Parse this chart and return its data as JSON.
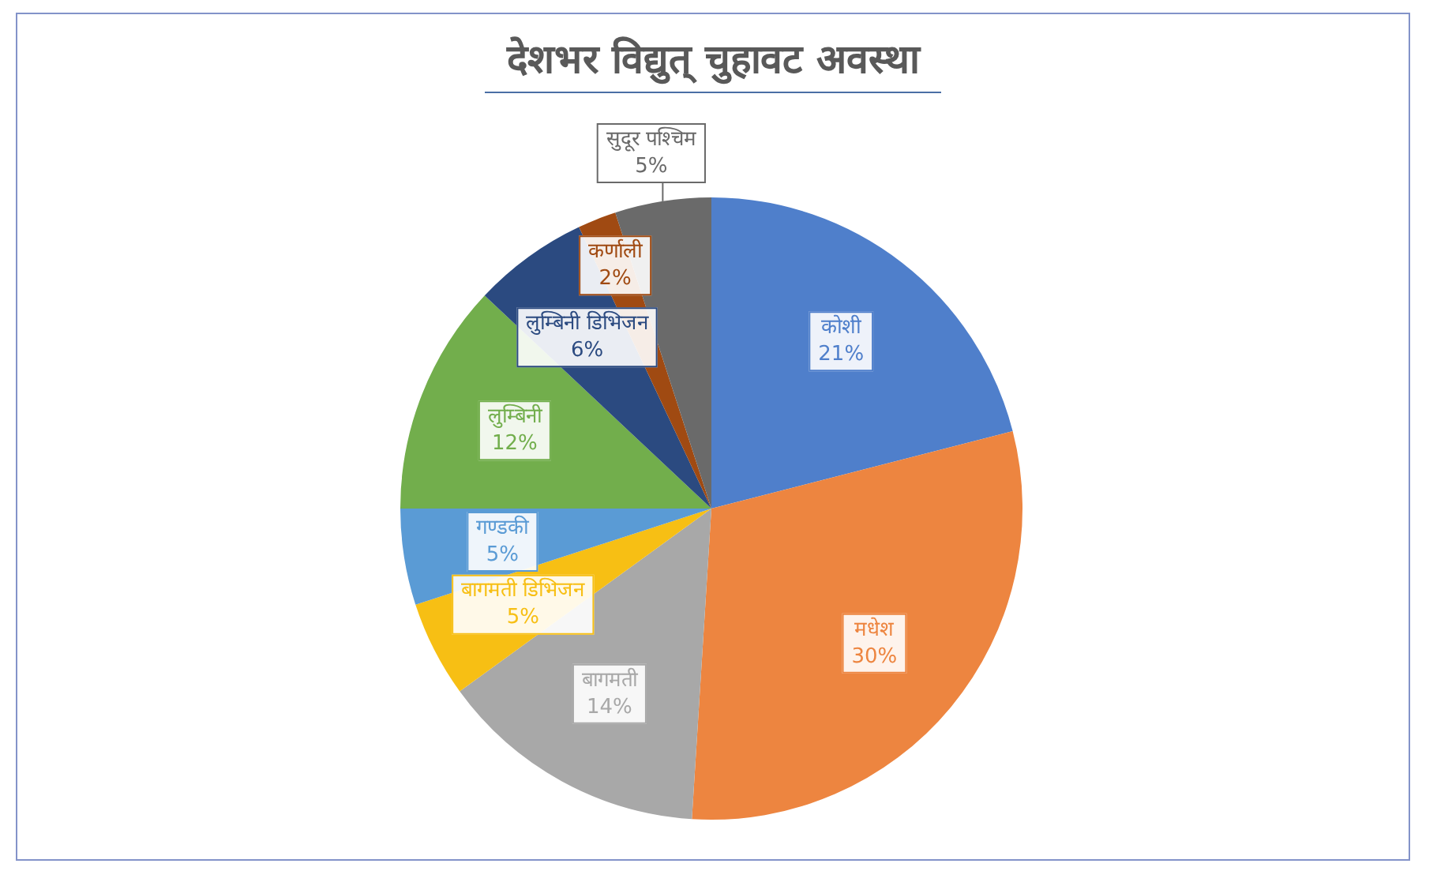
{
  "chart_data": {
    "type": "pie",
    "title": "देशभर विद्युत् चुहावट अवस्था",
    "categories": [
      "कोशी",
      "मधेश",
      "बागमती",
      "बागमती डिभिजन",
      "गण्डकी",
      "लुम्बिनी",
      "लुम्बिनी डिभिजन",
      "कर्णाली",
      "सुदूर पश्चिम"
    ],
    "values": [
      21,
      30,
      14,
      5,
      5,
      12,
      6,
      2,
      5
    ],
    "colors": [
      "#4f7fcb",
      "#ed8540",
      "#a8a8a8",
      "#f7bf14",
      "#5a9bd5",
      "#72ae4c",
      "#2b4a80",
      "#a04a12",
      "#6a6a6a"
    ],
    "value_labels": [
      "21%",
      "30%",
      "14%",
      "5%",
      "5%",
      "12%",
      "6%",
      "2%",
      "5%"
    ]
  }
}
